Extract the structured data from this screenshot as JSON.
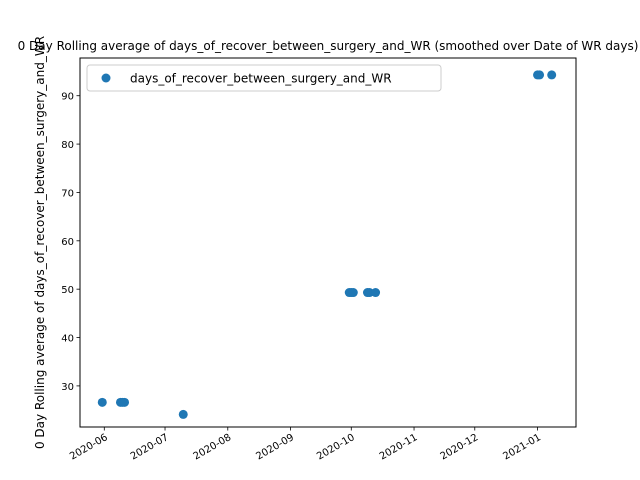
{
  "chart_data": {
    "type": "scatter",
    "title": "0 Day Rolling average of days_of_recover_between_surgery_and_WR (smoothed over Date of WR days)",
    "xlabel": "",
    "ylabel": "0 Day Rolling average of days_of_recover_between_surgery_and_WR",
    "x_is_date": true,
    "xlim": [
      "2020-05-20",
      "2021-01-20"
    ],
    "ylim": [
      21.5,
      97.8
    ],
    "xticks": [
      "2020-06-01",
      "2020-07-01",
      "2020-08-01",
      "2020-09-01",
      "2020-10-01",
      "2020-11-01",
      "2020-12-01",
      "2021-01-01"
    ],
    "xtick_labels": [
      "2020-06",
      "2020-07",
      "2020-08",
      "2020-09",
      "2020-10",
      "2020-11",
      "2020-12",
      "2021-01"
    ],
    "yticks": [
      30,
      40,
      50,
      60,
      70,
      80,
      90
    ],
    "ytick_labels": [
      "30",
      "40",
      "50",
      "60",
      "70",
      "80",
      "90"
    ],
    "grid": false,
    "legend": "upper-left",
    "series": [
      {
        "name": "days_of_recover_between_surgery_and_WR",
        "color": "#1f77b4",
        "points": [
          {
            "x": "2020-05-31",
            "y": 26.6
          },
          {
            "x": "2020-06-09",
            "y": 26.6
          },
          {
            "x": "2020-06-10",
            "y": 26.6
          },
          {
            "x": "2020-06-11",
            "y": 26.6
          },
          {
            "x": "2020-07-10",
            "y": 24.1
          },
          {
            "x": "2020-09-30",
            "y": 49.3
          },
          {
            "x": "2020-10-01",
            "y": 49.3
          },
          {
            "x": "2020-10-02",
            "y": 49.3
          },
          {
            "x": "2020-10-09",
            "y": 49.3
          },
          {
            "x": "2020-10-10",
            "y": 49.3
          },
          {
            "x": "2020-10-13",
            "y": 49.3
          },
          {
            "x": "2021-01-01",
            "y": 94.3
          },
          {
            "x": "2021-01-02",
            "y": 94.3
          },
          {
            "x": "2021-01-08",
            "y": 94.3
          }
        ]
      }
    ]
  }
}
